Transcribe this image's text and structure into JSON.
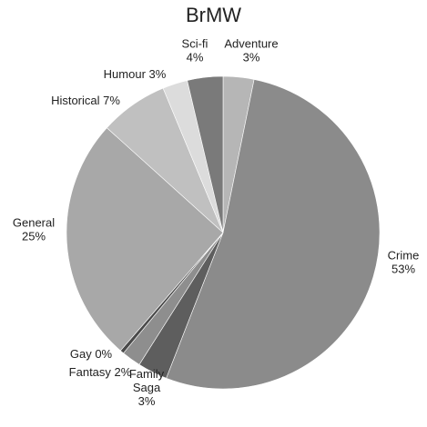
{
  "chart_data": {
    "type": "pie",
    "title": "BrMW",
    "slices": [
      {
        "name": "Adventure",
        "value": 3.2,
        "label": [
          "Adventure",
          "3%"
        ],
        "color": "#b6b6b6"
      },
      {
        "name": "Crime",
        "value": 53.1,
        "label": [
          "Crime",
          "53%"
        ],
        "color": "#8b8b8b"
      },
      {
        "name": "Family Saga",
        "value": 3.1,
        "label": [
          "Family",
          "Saga",
          "3%"
        ],
        "color": "#5e5e5e"
      },
      {
        "name": "Fantasy",
        "value": 2.0,
        "label": [
          "Fantasy 2%"
        ],
        "color": "#8e8e8e"
      },
      {
        "name": "Gay",
        "value": 0.4,
        "label": [
          "Gay 0%"
        ],
        "color": "#4a4a4a"
      },
      {
        "name": "General",
        "value": 25.5,
        "label": [
          "General",
          "25%"
        ],
        "color": "#a8a8a8"
      },
      {
        "name": "Historical",
        "value": 7.1,
        "label": [
          "Historical 7%"
        ],
        "color": "#c0c0c0"
      },
      {
        "name": "Humour",
        "value": 2.6,
        "label": [
          "Humour 3%"
        ],
        "color": "#dcdcdc"
      },
      {
        "name": "Sci-fi",
        "value": 3.7,
        "label": [
          "Sci-fi",
          "4%"
        ],
        "color": "#7a7a7a"
      }
    ]
  }
}
